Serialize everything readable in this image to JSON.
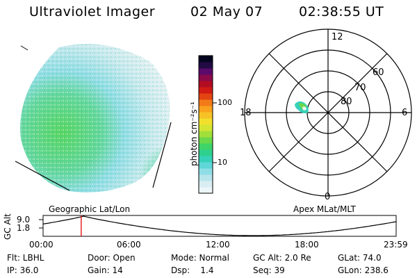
{
  "header": {
    "title": "Ultraviolet Imager",
    "date": "02 May 07",
    "time": "02:38:55 UT"
  },
  "colorbar": {
    "unit_label": "photon cm⁻²s⁻¹",
    "ticks": [
      "100",
      "10"
    ],
    "colors": [
      "#ecf6f8",
      "#d9eef2",
      "#b8e4ec",
      "#8fdde6",
      "#5fd6d8",
      "#36d1b8",
      "#2fd08e",
      "#3ed468",
      "#6ad84a",
      "#a2df3a",
      "#d4e632",
      "#f2e02c",
      "#f6c226",
      "#f8a21e",
      "#f27a18",
      "#e24412",
      "#d01a14",
      "#b20c22",
      "#8a0a4a",
      "#5a0a6a",
      "#220a44",
      "#050520"
    ]
  },
  "polar": {
    "lat_labels": [
      "60",
      "70",
      "80"
    ],
    "mlt_labels": {
      "top": "12",
      "left": "18",
      "right": "6",
      "bottom": "0"
    }
  },
  "orbit": {
    "left_label": "Geographic Lat/Lon",
    "right_label": "Apex MLat/MLT",
    "axis_title": "GC Alt",
    "y_ticks": [
      "9.0",
      "1.8"
    ],
    "x_ticks": [
      "00:00",
      "06:00",
      "12:00",
      "18:00",
      "23:59"
    ],
    "current_position_fraction": 0.108,
    "colors": {
      "track": "#000000",
      "marker": "#e00000"
    }
  },
  "info": {
    "row1": {
      "filter": "Flt: LBHL",
      "door": "Door: Open",
      "mode": "Mode: Normal",
      "gc_alt": "GC Alt: 2.0 Re",
      "glat": "GLat: 74.0"
    },
    "row2": {
      "ip": "IP: 36.0",
      "gain": "Gain: 14",
      "dsp": "Dsp:    1.4",
      "seq": "Seq: 39",
      "glon": "GLon: 238.6"
    }
  }
}
